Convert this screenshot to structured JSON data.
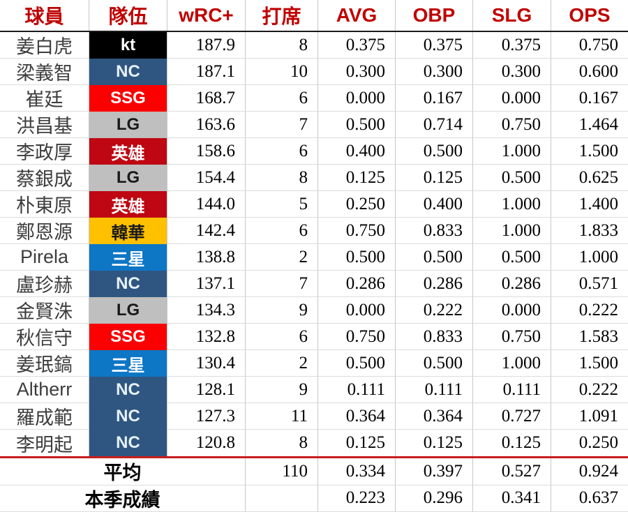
{
  "chart_data": {
    "type": "table",
    "title": "",
    "columns": [
      "球員",
      "隊伍",
      "wRC+",
      "打席",
      "AVG",
      "OBP",
      "SLG",
      "OPS"
    ],
    "rows": [
      {
        "name": "姜白虎",
        "team": "kt",
        "wrc": "187.9",
        "pa": "8",
        "avg": "0.375",
        "obp": "0.375",
        "slg": "0.375",
        "ops": "0.750"
      },
      {
        "name": "梁義智",
        "team": "NC",
        "wrc": "187.1",
        "pa": "10",
        "avg": "0.300",
        "obp": "0.300",
        "slg": "0.300",
        "ops": "0.600"
      },
      {
        "name": "崔廷",
        "team": "SSG",
        "wrc": "168.7",
        "pa": "6",
        "avg": "0.000",
        "obp": "0.167",
        "slg": "0.000",
        "ops": "0.167"
      },
      {
        "name": "洪昌基",
        "team": "LG",
        "wrc": "163.6",
        "pa": "7",
        "avg": "0.500",
        "obp": "0.714",
        "slg": "0.750",
        "ops": "1.464"
      },
      {
        "name": "李政厚",
        "team": "英雄",
        "wrc": "158.6",
        "pa": "6",
        "avg": "0.400",
        "obp": "0.500",
        "slg": "1.000",
        "ops": "1.500"
      },
      {
        "name": "蔡銀成",
        "team": "LG",
        "wrc": "154.4",
        "pa": "8",
        "avg": "0.125",
        "obp": "0.125",
        "slg": "0.500",
        "ops": "0.625"
      },
      {
        "name": "朴東原",
        "team": "英雄",
        "wrc": "144.0",
        "pa": "5",
        "avg": "0.250",
        "obp": "0.400",
        "slg": "1.000",
        "ops": "1.400"
      },
      {
        "name": "鄭恩源",
        "team": "韓華",
        "wrc": "142.4",
        "pa": "6",
        "avg": "0.750",
        "obp": "0.833",
        "slg": "1.000",
        "ops": "1.833"
      },
      {
        "name": "Pirela",
        "team": "三星",
        "wrc": "138.8",
        "pa": "2",
        "avg": "0.500",
        "obp": "0.500",
        "slg": "0.500",
        "ops": "1.000"
      },
      {
        "name": "盧珍赫",
        "team": "NC",
        "wrc": "137.1",
        "pa": "7",
        "avg": "0.286",
        "obp": "0.286",
        "slg": "0.286",
        "ops": "0.571"
      },
      {
        "name": "金賢洙",
        "team": "LG",
        "wrc": "134.3",
        "pa": "9",
        "avg": "0.000",
        "obp": "0.222",
        "slg": "0.000",
        "ops": "0.222"
      },
      {
        "name": "秋信守",
        "team": "SSG",
        "wrc": "132.8",
        "pa": "6",
        "avg": "0.750",
        "obp": "0.833",
        "slg": "0.750",
        "ops": "1.583"
      },
      {
        "name": "姜珉鎬",
        "team": "三星",
        "wrc": "130.4",
        "pa": "2",
        "avg": "0.500",
        "obp": "0.500",
        "slg": "1.000",
        "ops": "1.500"
      },
      {
        "name": "Altherr",
        "team": "NC",
        "wrc": "128.1",
        "pa": "9",
        "avg": "0.111",
        "obp": "0.111",
        "slg": "0.111",
        "ops": "0.222"
      },
      {
        "name": "羅成範",
        "team": "NC",
        "wrc": "127.3",
        "pa": "11",
        "avg": "0.364",
        "obp": "0.364",
        "slg": "0.727",
        "ops": "1.091"
      },
      {
        "name": "李明起",
        "team": "NC",
        "wrc": "120.8",
        "pa": "8",
        "avg": "0.125",
        "obp": "0.125",
        "slg": "0.125",
        "ops": "0.250"
      }
    ],
    "summary_rows": [
      {
        "label": "平均",
        "pa": "110",
        "avg": "0.334",
        "obp": "0.397",
        "slg": "0.527",
        "ops": "0.924"
      },
      {
        "label": "本季成績",
        "pa": "",
        "avg": "0.223",
        "obp": "0.296",
        "slg": "0.341",
        "ops": "0.637"
      }
    ]
  },
  "team_colors": {
    "kt": {
      "bg": "#000000",
      "fg": "#ffffff"
    },
    "NC": {
      "bg": "#2e5680",
      "fg": "#e8f1fa"
    },
    "SSG": {
      "bg": "#fb0000",
      "fg": "#ffffff"
    },
    "LG": {
      "bg": "#bfbfbf",
      "fg": "#1a1a1a"
    },
    "英雄": {
      "bg": "#be0712",
      "fg": "#ffffff"
    },
    "韓華": {
      "bg": "#ffc000",
      "fg": "#1a1a1a"
    },
    "三星": {
      "bg": "#0d76c5",
      "fg": "#ffffff"
    }
  },
  "colors": {
    "header_text": "#c00000",
    "header_bottom_border": "#1a1a1a",
    "grid_line": "#c8c8c8",
    "summary_divider": "#c81e1e"
  }
}
